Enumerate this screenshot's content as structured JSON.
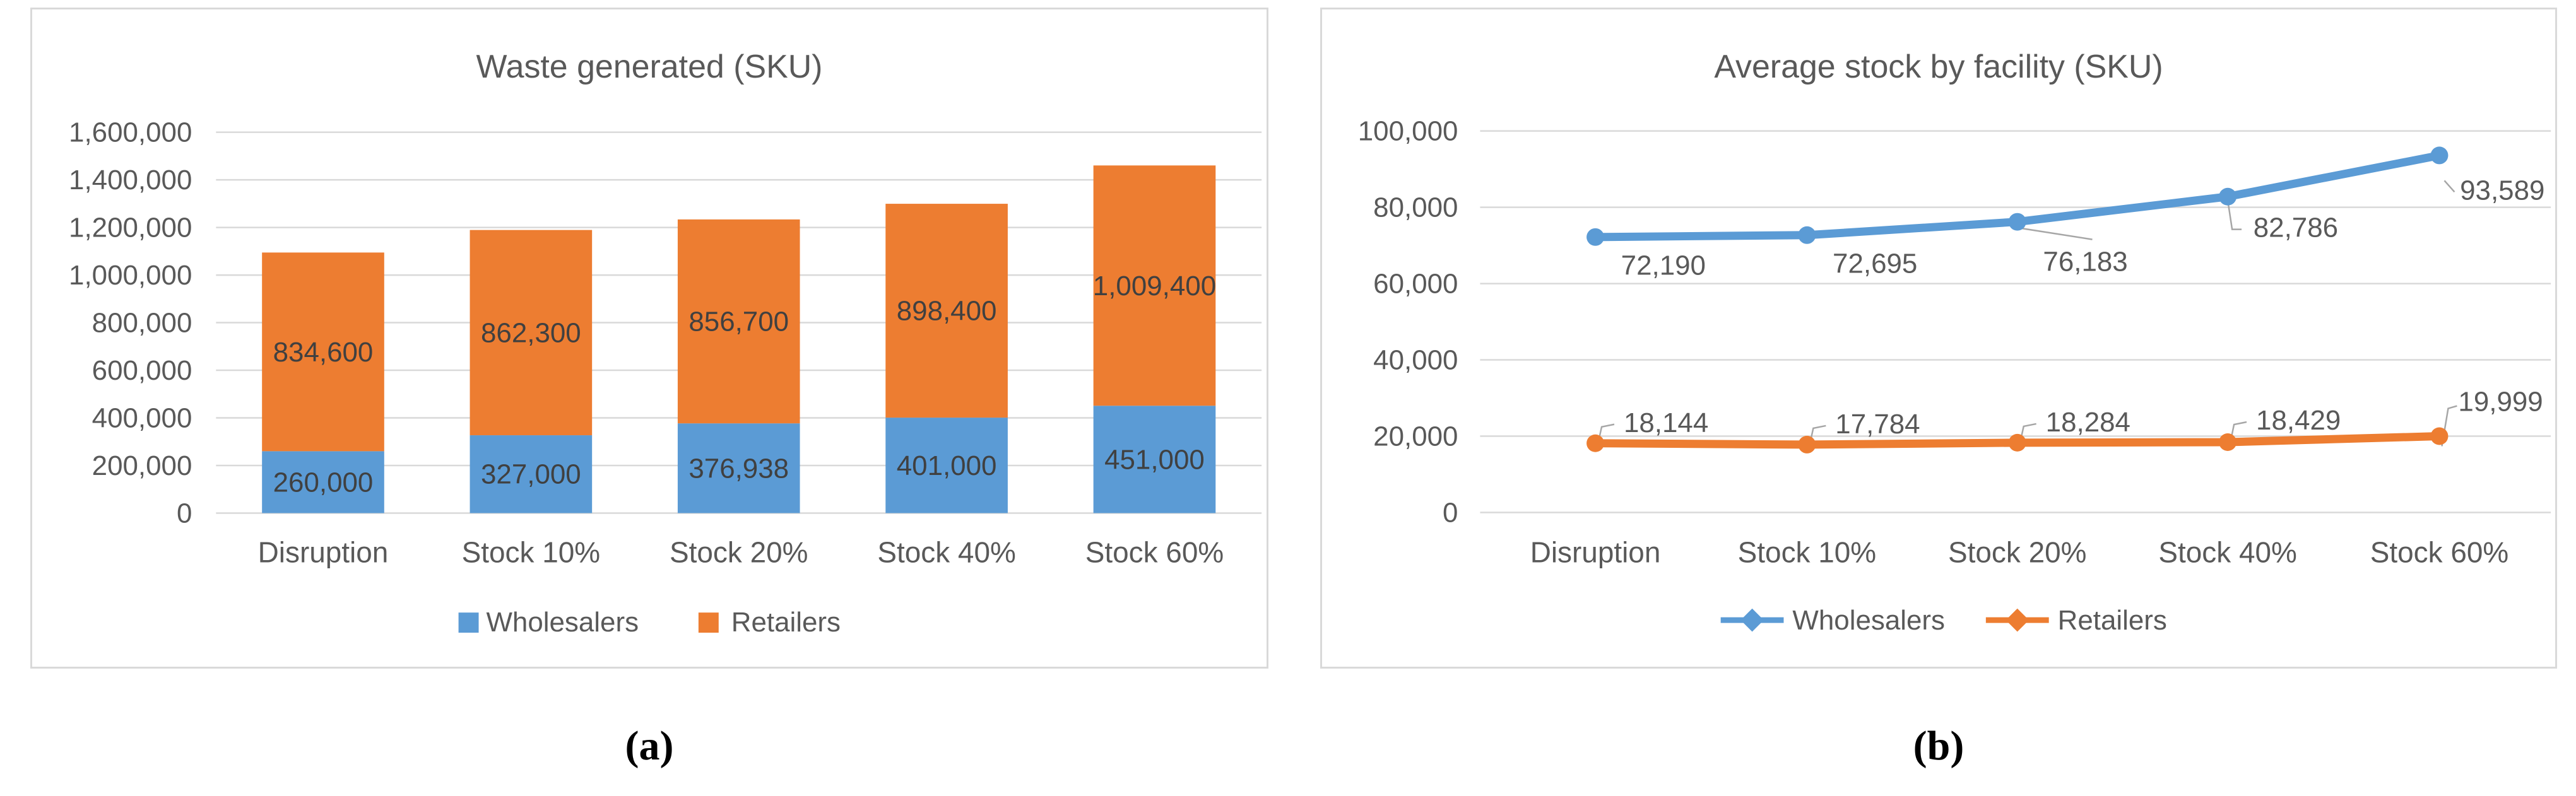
{
  "figure": {
    "captions": {
      "a": "(a)",
      "b": "(b)"
    }
  },
  "colors": {
    "wholesalers_blue": "#5B9BD5",
    "retailers_orange": "#ED7D31",
    "gridline": "#D9D9D9",
    "panel_border": "#D9D9D9",
    "axis_text": "#595959",
    "bar_label_text": "#404040",
    "leader_line": "#A6A6A6",
    "caption_text": "#000000"
  },
  "chart_data": [
    {
      "type": "bar",
      "stacked": true,
      "title": "Waste generated (SKU)",
      "categories": [
        "Disruption",
        "Stock 10%",
        "Stock 20%",
        "Stock 40%",
        "Stock 60%"
      ],
      "series": [
        {
          "name": "Wholesalers",
          "color": "#5B9BD5",
          "values": [
            260000,
            327000,
            376938,
            401000,
            451000
          ],
          "labels": [
            "260,000",
            "327,000",
            "376,938",
            "401,000",
            "451,000"
          ]
        },
        {
          "name": "Retailers",
          "color": "#ED7D31",
          "values": [
            834600,
            862300,
            856700,
            898400,
            1009400
          ],
          "labels": [
            "834,600",
            "862,300",
            "856,700",
            "898,400",
            "1,009,400"
          ]
        }
      ],
      "ylim": [
        0,
        1600000
      ],
      "ytick_step": 200000,
      "ytick_labels": [
        "0",
        "200,000",
        "400,000",
        "600,000",
        "800,000",
        "1,000,000",
        "1,200,000",
        "1,400,000",
        "1,600,000"
      ],
      "grid": true,
      "legend_position": "bottom"
    },
    {
      "type": "line",
      "title": "Average stock by facility (SKU)",
      "categories": [
        "Disruption",
        "Stock 10%",
        "Stock 20%",
        "Stock 40%",
        "Stock 60%"
      ],
      "series": [
        {
          "name": "Wholesalers",
          "color": "#5B9BD5",
          "values": [
            72190,
            72695,
            76183,
            82786,
            93589
          ],
          "labels": [
            "72,190",
            "72,695",
            "76,183",
            "82,786",
            "93,589"
          ]
        },
        {
          "name": "Retailers",
          "color": "#ED7D31",
          "values": [
            18144,
            17784,
            18284,
            18429,
            19999
          ],
          "labels": [
            "18,144",
            "17,784",
            "18,284",
            "18,429",
            "19,999"
          ]
        }
      ],
      "ylim": [
        0,
        100000
      ],
      "ytick_step": 20000,
      "ytick_labels": [
        "0",
        "20,000",
        "40,000",
        "60,000",
        "80,000",
        "100,000"
      ],
      "grid": true,
      "legend_position": "bottom"
    }
  ]
}
